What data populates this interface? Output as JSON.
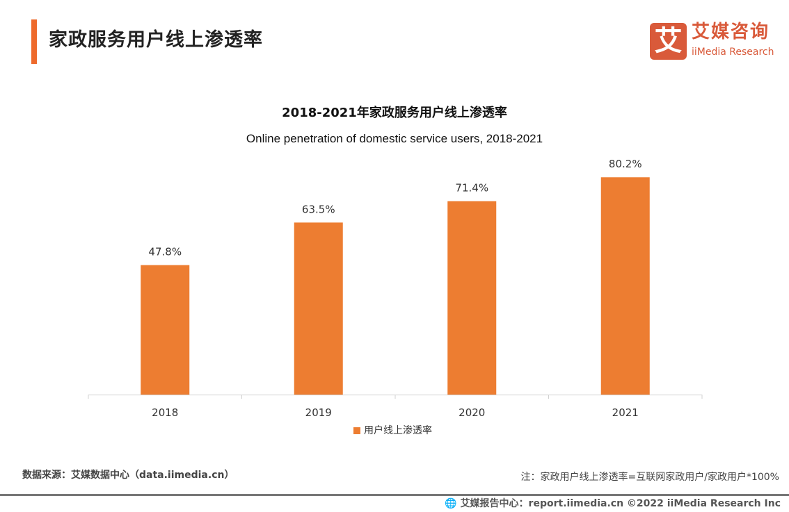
{
  "header": {
    "title": "家政服务用户线上渗透率",
    "accent_color": "#ee6a2c"
  },
  "logo": {
    "mark": "艾",
    "cn": "艾媒咨询",
    "en": "iiMedia Research",
    "color": "#d95a3a"
  },
  "chart_data": {
    "type": "bar",
    "title": "2018-2021年家政服务用户线上渗透率",
    "subtitle": "Online penetration of domestic service users, 2018-2021",
    "categories": [
      "2018",
      "2019",
      "2020",
      "2021"
    ],
    "series": [
      {
        "name": "用户线上渗透率",
        "values": [
          47.8,
          63.5,
          71.4,
          80.2
        ],
        "labels": [
          "47.8%",
          "63.5%",
          "71.4%",
          "80.2%"
        ],
        "color": "#ed7d31"
      }
    ],
    "ylim": [
      0,
      100
    ],
    "grid": false,
    "legend": "bottom"
  },
  "footer": {
    "source": "数据来源：艾媒数据中心（data.iimedia.cn）",
    "note": "注：家政用户线上渗透率=互联网家政用户/家政用户*100%",
    "credit": "艾媒报告中心：report.iimedia.cn  ©2022  iiMedia Research  Inc"
  }
}
